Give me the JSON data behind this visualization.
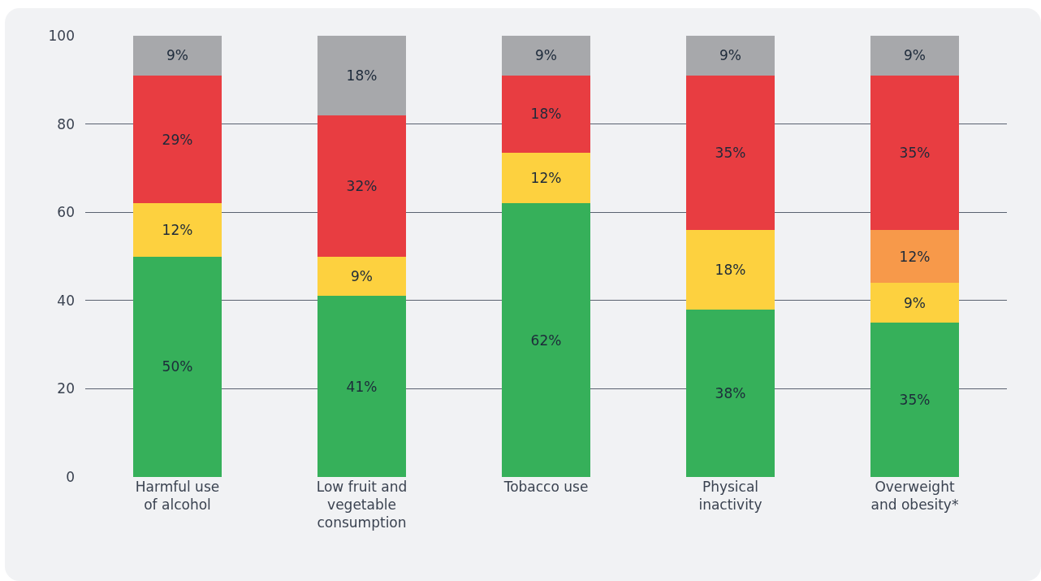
{
  "chart_data": {
    "type": "bar",
    "stacked": true,
    "categories": [
      "Harmful use\nof alcohol",
      "Low fruit and\nvegetable\nconsumption",
      "Tobacco use",
      "Physical\ninactivity",
      "Overweight\nand obesity*"
    ],
    "series": [
      {
        "color": "#36b05a",
        "values": [
          50,
          41,
          62,
          38,
          35
        ],
        "value_labels": [
          "50%",
          "41%",
          "62%",
          "38%",
          "35%"
        ]
      },
      {
        "color": "#fdd13f",
        "values": [
          12,
          9,
          11.5,
          18,
          9
        ],
        "value_labels": [
          "12%",
          "9%",
          "12%",
          "18%",
          "9%"
        ]
      },
      {
        "color": "#f7994a",
        "values": [
          null,
          null,
          null,
          null,
          12
        ],
        "value_labels": [
          null,
          null,
          null,
          null,
          "12%"
        ]
      },
      {
        "color": "#e83d41",
        "values": [
          29,
          32,
          17.5,
          35,
          35
        ],
        "value_labels": [
          "29%",
          "32%",
          "18%",
          "35%",
          "35%"
        ]
      },
      {
        "color": "#a7a8ab",
        "values": [
          9,
          18,
          9,
          9,
          9
        ],
        "value_labels": [
          "9%",
          "18%",
          "9%",
          "9%",
          "9%"
        ]
      }
    ],
    "ylim": [
      0,
      100
    ],
    "yticks": [
      0,
      20,
      40,
      60,
      80,
      100
    ],
    "grid": "y"
  }
}
